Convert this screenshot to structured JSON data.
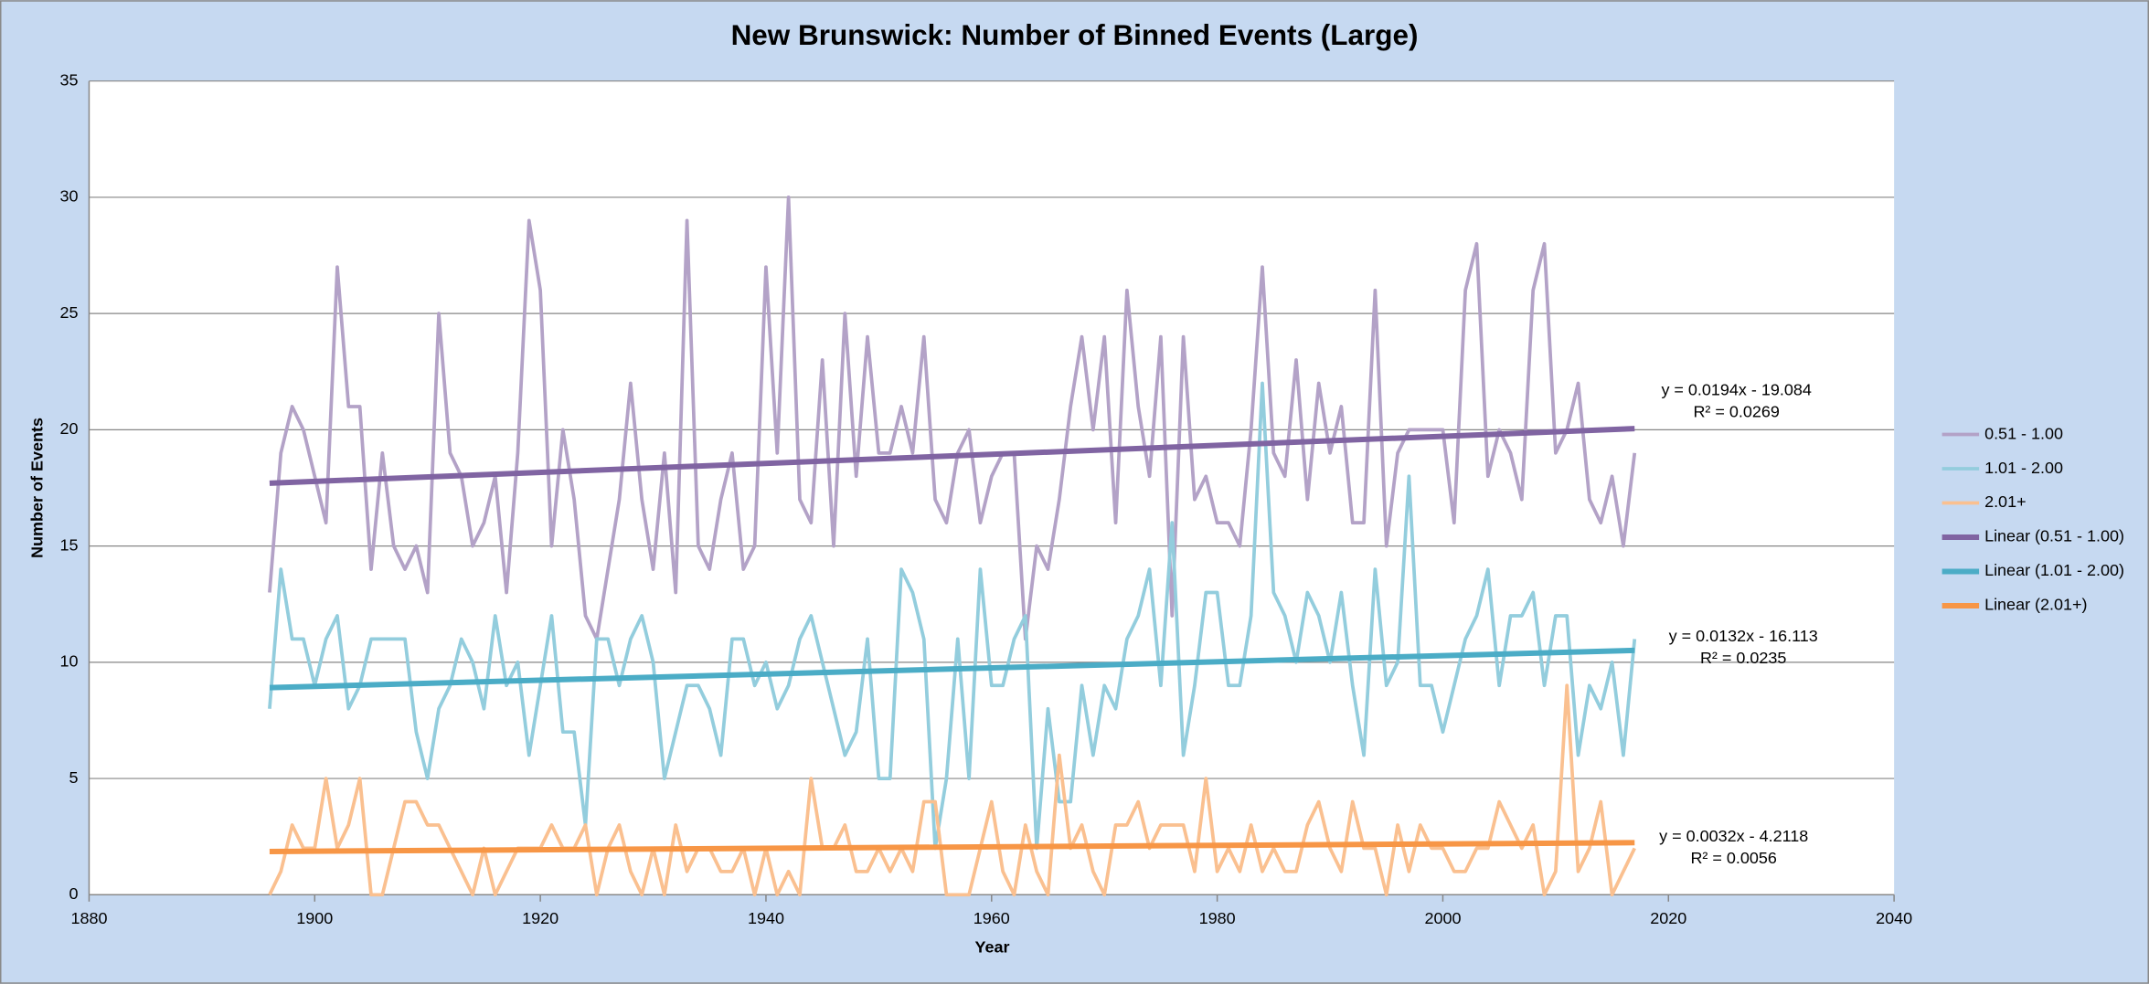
{
  "chart_data": {
    "type": "line",
    "title": "New Brunswick: Number of Binned Events (Large)",
    "x_label": "Year",
    "y_label": "Number of Events",
    "xlim": [
      1880,
      2040
    ],
    "xticks": [
      1880,
      1900,
      1920,
      1940,
      1960,
      1980,
      2000,
      2020,
      2040
    ],
    "ylim": [
      0,
      35
    ],
    "yticks": [
      0,
      5,
      10,
      15,
      20,
      25,
      30,
      35
    ],
    "grid": true,
    "legend": "right",
    "x": [
      1896,
      1897,
      1898,
      1899,
      1900,
      1901,
      1902,
      1903,
      1904,
      1905,
      1906,
      1907,
      1908,
      1909,
      1910,
      1911,
      1912,
      1913,
      1914,
      1915,
      1916,
      1917,
      1918,
      1919,
      1920,
      1921,
      1922,
      1923,
      1924,
      1925,
      1926,
      1927,
      1928,
      1929,
      1930,
      1931,
      1932,
      1933,
      1934,
      1935,
      1936,
      1937,
      1938,
      1939,
      1940,
      1941,
      1942,
      1943,
      1944,
      1945,
      1946,
      1947,
      1948,
      1949,
      1950,
      1951,
      1952,
      1953,
      1954,
      1955,
      1956,
      1957,
      1958,
      1959,
      1960,
      1961,
      1962,
      1963,
      1964,
      1965,
      1966,
      1967,
      1968,
      1969,
      1970,
      1971,
      1972,
      1973,
      1974,
      1975,
      1976,
      1977,
      1978,
      1979,
      1980,
      1981,
      1982,
      1983,
      1984,
      1985,
      1986,
      1987,
      1988,
      1989,
      1990,
      1991,
      1992,
      1993,
      1994,
      1995,
      1996,
      1997,
      1998,
      1999,
      2000,
      2001,
      2002,
      2003,
      2004,
      2005,
      2006,
      2007,
      2008,
      2009,
      2010,
      2011,
      2012,
      2013,
      2014,
      2015,
      2016,
      2017
    ],
    "series": [
      {
        "name": "0.51 - 1.00",
        "color": "#b3a2c7",
        "values": [
          13,
          19,
          21,
          20,
          18,
          16,
          27,
          21,
          21,
          14,
          19,
          15,
          14,
          15,
          13,
          25,
          19,
          18,
          15,
          16,
          18,
          13,
          19,
          29,
          26,
          15,
          20,
          17,
          12,
          11,
          14,
          17,
          22,
          17,
          14,
          19,
          13,
          29,
          15,
          14,
          17,
          19,
          14,
          15,
          27,
          19,
          30,
          17,
          16,
          23,
          15,
          25,
          18,
          24,
          19,
          19,
          21,
          19,
          24,
          17,
          16,
          19,
          20,
          16,
          18,
          19,
          19,
          11,
          15,
          14,
          17,
          21,
          24,
          20,
          24,
          16,
          26,
          21,
          18,
          24,
          12,
          24,
          17,
          18,
          16,
          16,
          15,
          20,
          27,
          19,
          18,
          23,
          17,
          22,
          19,
          21,
          16,
          16,
          26,
          15,
          19,
          20,
          20,
          20,
          20,
          16,
          26,
          28,
          18,
          20,
          19,
          17,
          26,
          28,
          19,
          20,
          22,
          17,
          16,
          18,
          15,
          19
        ]
      },
      {
        "name": "1.01 - 2.00",
        "color": "#93cddd",
        "values": [
          8,
          14,
          11,
          11,
          9,
          11,
          12,
          8,
          9,
          11,
          11,
          11,
          11,
          7,
          5,
          8,
          9,
          11,
          10,
          8,
          12,
          9,
          10,
          6,
          9,
          12,
          7,
          7,
          3,
          11,
          11,
          9,
          11,
          12,
          10,
          5,
          7,
          9,
          9,
          8,
          6,
          11,
          11,
          9,
          10,
          8,
          9,
          11,
          12,
          10,
          8,
          6,
          7,
          11,
          5,
          5,
          14,
          13,
          11,
          2,
          5,
          11,
          5,
          14,
          9,
          9,
          11,
          12,
          2,
          8,
          4,
          4,
          9,
          6,
          9,
          8,
          11,
          12,
          14,
          9,
          16,
          6,
          9,
          13,
          13,
          9,
          9,
          12,
          22,
          13,
          12,
          10,
          13,
          12,
          10,
          13,
          9,
          6,
          14,
          9,
          10,
          18,
          9,
          9,
          7,
          9,
          11,
          12,
          14,
          9,
          12,
          12,
          13,
          9,
          12,
          12,
          6,
          9,
          8,
          10,
          6,
          11
        ]
      },
      {
        "name": "2.01+",
        "color": "#fac090",
        "values": [
          0,
          1,
          3,
          2,
          2,
          5,
          2,
          3,
          5,
          0,
          0,
          2,
          4,
          4,
          3,
          3,
          2,
          1,
          0,
          2,
          0,
          1,
          2,
          2,
          2,
          3,
          2,
          2,
          3,
          0,
          2,
          3,
          1,
          0,
          2,
          0,
          3,
          1,
          2,
          2,
          1,
          1,
          2,
          0,
          2,
          0,
          1,
          0,
          5,
          2,
          2,
          3,
          1,
          1,
          2,
          1,
          2,
          1,
          4,
          4,
          0,
          0,
          0,
          2,
          4,
          1,
          0,
          3,
          1,
          0,
          6,
          2,
          3,
          1,
          0,
          3,
          3,
          4,
          2,
          3,
          3,
          3,
          1,
          5,
          1,
          2,
          1,
          3,
          1,
          2,
          1,
          1,
          3,
          4,
          2,
          1,
          4,
          2,
          2,
          0,
          3,
          1,
          3,
          2,
          2,
          1,
          1,
          2,
          2,
          4,
          3,
          2,
          3,
          0,
          1,
          9,
          1,
          2,
          4,
          0,
          1,
          2
        ]
      },
      {
        "name": "Linear (0.51 - 1.00)",
        "color": "#8064a2",
        "trend": true,
        "x": [
          1896,
          2017
        ],
        "values": [
          17.7,
          20.05
        ]
      },
      {
        "name": "Linear (1.01 - 2.00)",
        "color": "#4bacc6",
        "trend": true,
        "x": [
          1896,
          2017
        ],
        "values": [
          8.91,
          10.51
        ]
      },
      {
        "name": "Linear (2.01+)",
        "color": "#f79646",
        "trend": true,
        "x": [
          1896,
          2017
        ],
        "values": [
          1.86,
          2.24
        ]
      }
    ],
    "annotations": [
      [
        "y = 0.0194x - 19.084",
        "R² = 0.0269"
      ],
      [
        "y = 0.0132x - 16.113",
        "R² = 0.0235"
      ],
      [
        "y = 0.0032x - 4.2118",
        "R² = 0.0056"
      ]
    ]
  }
}
